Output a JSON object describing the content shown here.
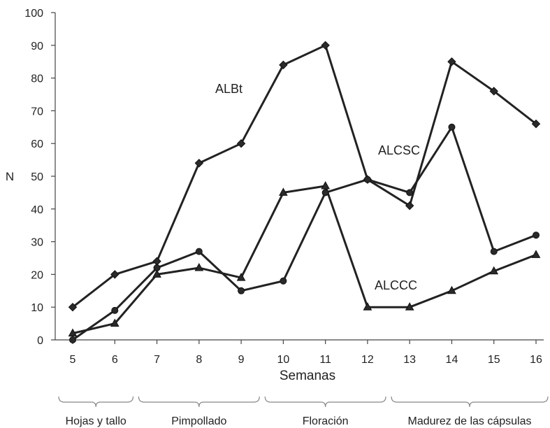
{
  "chart_data": {
    "type": "line",
    "ylabel": "N",
    "xlabel": "Semanas",
    "x": [
      5,
      6,
      7,
      8,
      9,
      10,
      11,
      12,
      13,
      14,
      15,
      16
    ],
    "ylim": [
      0,
      100
    ],
    "yticks": [
      0,
      10,
      20,
      30,
      40,
      50,
      60,
      70,
      80,
      90,
      100
    ],
    "grid": false,
    "line_color": "#222222",
    "series": [
      {
        "name": "ALBt",
        "marker": "diamond",
        "values": [
          10,
          20,
          24,
          54,
          60,
          84,
          90,
          49,
          41,
          85,
          76,
          66
        ]
      },
      {
        "name": "ALCSC",
        "marker": "circle",
        "values": [
          0,
          9,
          22,
          27,
          15,
          18,
          45,
          49,
          45,
          65,
          27,
          32
        ]
      },
      {
        "name": "ALCCC",
        "marker": "triangle",
        "values": [
          2,
          5,
          20,
          22,
          19,
          45,
          47,
          10,
          10,
          15,
          21,
          26
        ]
      }
    ],
    "phases": [
      {
        "label": "Hojas y tallo",
        "from": 5,
        "to": 6
      },
      {
        "label": "Pimpollado",
        "from": 7,
        "to": 9
      },
      {
        "label": "Floración",
        "from": 10,
        "to": 12
      },
      {
        "label": "Madurez de las cápsulas",
        "from": 13,
        "to": 16
      }
    ]
  }
}
